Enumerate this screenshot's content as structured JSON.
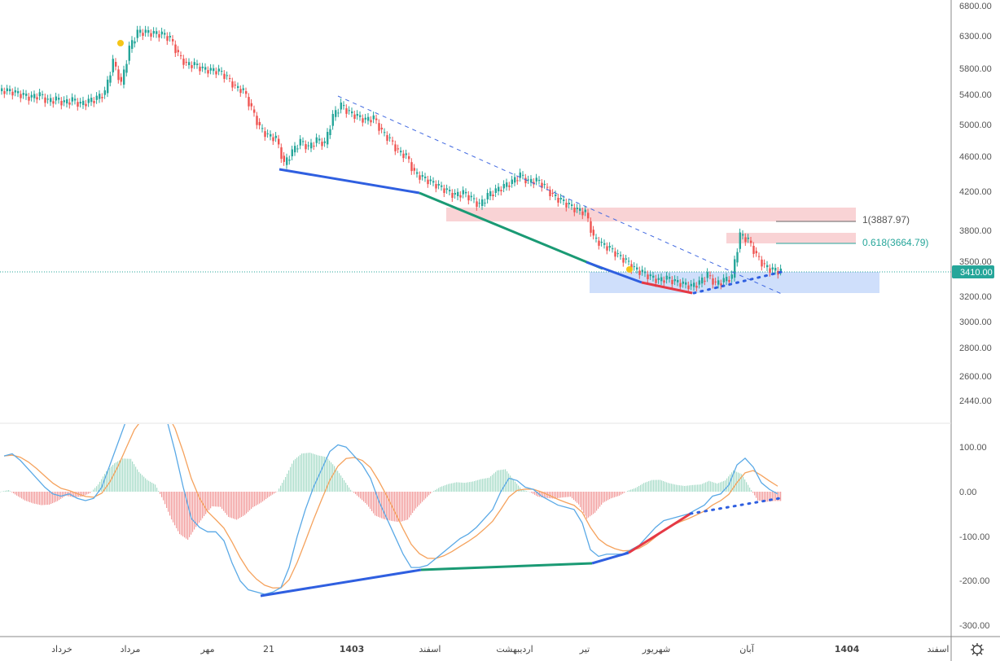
{
  "chart_data": [
    {
      "type": "candlestick",
      "pane": "price",
      "scale": "log",
      "y_ticks": [
        "6800.00",
        "6300.00",
        "5800.00",
        "5400.00",
        "5000.00",
        "4600.00",
        "4200.00",
        "3800.00",
        "3500.00",
        "3200.00",
        "3000.00",
        "2800.00",
        "2600.00",
        "2440.00"
      ],
      "last_price_label": "3410.00",
      "fib_levels": [
        {
          "label": "1(3887.97)",
          "value": 3887.97,
          "color": "#888888"
        },
        {
          "label": "0.618(3664.79)",
          "value": 3664.79,
          "color": "#26a69a"
        }
      ],
      "closes": [
        5450,
        5420,
        5380,
        5350,
        5390,
        5300,
        5330,
        5280,
        5320,
        5260,
        5300,
        5340,
        5420,
        5900,
        5550,
        6100,
        6350,
        6350,
        6330,
        6320,
        6250,
        6000,
        5850,
        5850,
        5780,
        5760,
        5750,
        5650,
        5500,
        5450,
        5200,
        4950,
        4850,
        4820,
        4500,
        4650,
        4780,
        4700,
        4800,
        4750,
        5100,
        5250,
        5150,
        5100,
        5050,
        5080,
        4900,
        4800,
        4650,
        4600,
        4400,
        4350,
        4300,
        4250,
        4200,
        4150,
        4180,
        4120,
        4050,
        4150,
        4200,
        4250,
        4300,
        4380,
        4300,
        4320,
        4250,
        4150,
        4100,
        4050,
        4000,
        3980,
        3720,
        3660,
        3620,
        3550,
        3500,
        3430,
        3400,
        3360,
        3330,
        3350,
        3320,
        3300,
        3280,
        3310,
        3380,
        3300,
        3330,
        3360,
        3750,
        3700,
        3550,
        3450,
        3420,
        3410
      ]
    },
    {
      "type": "line",
      "pane": "macd",
      "y_ticks": [
        "100.00",
        "0.00",
        "-100.00",
        "-200.00",
        "-300.00"
      ],
      "series": [
        {
          "values": [
            80,
            85,
            70,
            50,
            30,
            10,
            -5,
            -10,
            -5,
            -15,
            -20,
            -15,
            10,
            60,
            110,
            160,
            200,
            200,
            200,
            200,
            160,
            90,
            10,
            -60,
            -80,
            -90,
            -90,
            -110,
            -160,
            -200,
            -220,
            -225,
            -230,
            -225,
            -215,
            -170,
            -100,
            -40,
            10,
            50,
            90,
            105,
            100,
            80,
            60,
            30,
            -20,
            -60,
            -100,
            -140,
            -170,
            -170,
            -165,
            -150,
            -135,
            -120,
            -105,
            -95,
            -80,
            -60,
            -40,
            0,
            30,
            25,
            10,
            5,
            -10,
            -20,
            -30,
            -35,
            -40,
            -70,
            -130,
            -145,
            -140,
            -140,
            -140,
            -130,
            -120,
            -100,
            -80,
            -65,
            -60,
            -55,
            -50,
            -40,
            -30,
            -10,
            -5,
            15,
            60,
            75,
            55,
            20,
            5,
            -5
          ]
        }
      ],
      "colors": {
        "macd": "#5aa9e6",
        "signal": "#f5a25d",
        "hist_up": "#a8dcc9",
        "hist_down": "#f29a9a"
      }
    }
  ],
  "x_axis": [
    "خرداد",
    "مرداد",
    "مهر",
    "21",
    "1403",
    "اسفند",
    "اردیبهشت",
    "تیر",
    "شهریور",
    "آبان",
    "1404",
    "اسفند"
  ],
  "colors": {
    "up": "#26a69a",
    "down": "#ef5350",
    "price_tag": "#26a69a"
  }
}
